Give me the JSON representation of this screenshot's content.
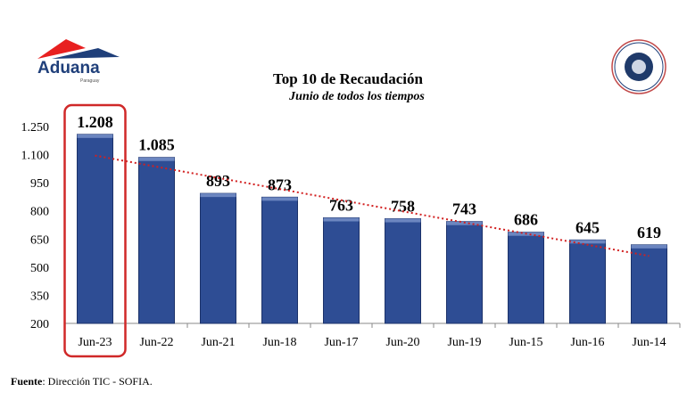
{
  "logo": {
    "name": "Aduana",
    "sub": "Paraguay",
    "seal_text": "ADUANA PARAGUAY"
  },
  "chart_data": {
    "type": "bar",
    "title": "Top 10 de Recaudación",
    "subtitle": "Junio de todos los tiempos",
    "categories": [
      "Jun-23",
      "Jun-22",
      "Jun-21",
      "Jun-18",
      "Jun-17",
      "Jun-20",
      "Jun-19",
      "Jun-15",
      "Jun-16",
      "Jun-14"
    ],
    "values": [
      1208,
      1085,
      893,
      873,
      763,
      758,
      743,
      686,
      645,
      619
    ],
    "value_labels": [
      "1.208",
      "1.085",
      "893",
      "873",
      "763",
      "758",
      "743",
      "686",
      "645",
      "619"
    ],
    "yticks": [
      200,
      350,
      500,
      650,
      800,
      950,
      1100,
      1250
    ],
    "ytick_labels": [
      "200",
      "350",
      "500",
      "650",
      "800",
      "950",
      "1.100",
      "1.250"
    ],
    "ylim": [
      200,
      1250
    ],
    "highlight": "Jun-23",
    "trendline": "linear",
    "colors": {
      "bar": "#2e4d94",
      "trend": "#d22020",
      "highlight": "#d02828"
    }
  },
  "footer": {
    "source_label": "Fuente",
    "source_text": ": Dirección TIC - SOFIA."
  }
}
